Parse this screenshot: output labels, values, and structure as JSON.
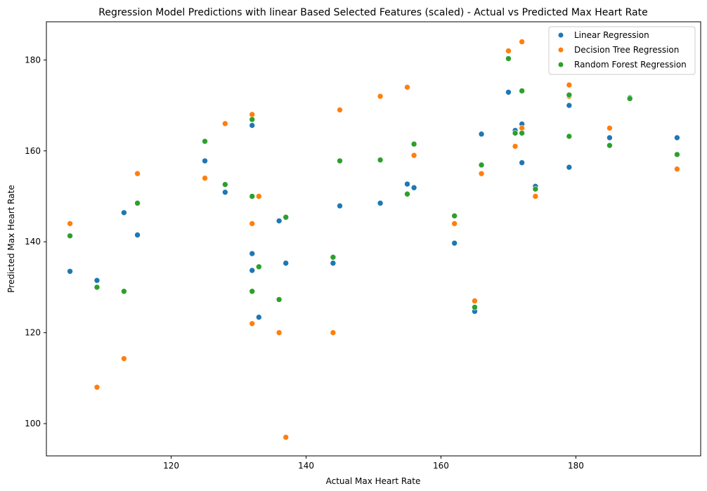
{
  "chart_data": {
    "type": "scatter",
    "title": "Regression Model Predictions with linear Based Selected Features (scaled) - Actual vs Predicted Max Heart Rate",
    "xlabel": "Actual Max Heart Rate",
    "ylabel": "Predicted Max Heart Rate",
    "xlim": [
      101.5,
      198.5
    ],
    "ylim": [
      92.9,
      188.4
    ],
    "xticks": [
      120,
      140,
      160,
      180
    ],
    "yticks": [
      100,
      120,
      140,
      160,
      180
    ],
    "grid": false,
    "legend_position": "top-right",
    "series": [
      {
        "name": "Linear Regression",
        "color": "#1f77b4",
        "points": [
          [
            105,
            133.5
          ],
          [
            109,
            131.5
          ],
          [
            113,
            146.4
          ],
          [
            115,
            141.5
          ],
          [
            125,
            157.8
          ],
          [
            128,
            150.9
          ],
          [
            132,
            165.6
          ],
          [
            132,
            137.4
          ],
          [
            132,
            133.7
          ],
          [
            133,
            123.4
          ],
          [
            136,
            144.6
          ],
          [
            137,
            135.3
          ],
          [
            144,
            135.3
          ],
          [
            145,
            147.9
          ],
          [
            151,
            148.5
          ],
          [
            155,
            152.7
          ],
          [
            156,
            151.9
          ],
          [
            162,
            139.7
          ],
          [
            165,
            124.7
          ],
          [
            166,
            163.7
          ],
          [
            170,
            172.9
          ],
          [
            171,
            164.5
          ],
          [
            172,
            165.9
          ],
          [
            172,
            157.4
          ],
          [
            174,
            152.2
          ],
          [
            179,
            170.0
          ],
          [
            179,
            156.4
          ],
          [
            185,
            162.9
          ],
          [
            188,
            171.7
          ],
          [
            195,
            162.9
          ]
        ]
      },
      {
        "name": "Decision Tree Regression",
        "color": "#ff7f0e",
        "points": [
          [
            105,
            144.0
          ],
          [
            109,
            108.0
          ],
          [
            113,
            114.3
          ],
          [
            115,
            155.0
          ],
          [
            125,
            154.0
          ],
          [
            128,
            166.0
          ],
          [
            132,
            168.0
          ],
          [
            132,
            144.0
          ],
          [
            132,
            122.0
          ],
          [
            133,
            150.0
          ],
          [
            136,
            120.0
          ],
          [
            137,
            97.0
          ],
          [
            144,
            120.0
          ],
          [
            145,
            169.0
          ],
          [
            151,
            172.0
          ],
          [
            155,
            174.0
          ],
          [
            156,
            159.0
          ],
          [
            162,
            144.0
          ],
          [
            165,
            127.0
          ],
          [
            166,
            155.0
          ],
          [
            170,
            182.0
          ],
          [
            171,
            161.0
          ],
          [
            172,
            184.0
          ],
          [
            172,
            165.0
          ],
          [
            174,
            150.0
          ],
          [
            179,
            174.5
          ],
          [
            179,
            172.0
          ],
          [
            185,
            165.0
          ],
          [
            195,
            156.0
          ]
        ]
      },
      {
        "name": "Random Forest Regression",
        "color": "#2ca02c",
        "points": [
          [
            105,
            141.3
          ],
          [
            109,
            130.0
          ],
          [
            113,
            129.1
          ],
          [
            115,
            148.5
          ],
          [
            125,
            162.1
          ],
          [
            128,
            152.6
          ],
          [
            132,
            166.9
          ],
          [
            132,
            150.0
          ],
          [
            132,
            129.1
          ],
          [
            133,
            134.5
          ],
          [
            136,
            127.3
          ],
          [
            137,
            145.4
          ],
          [
            144,
            136.6
          ],
          [
            145,
            157.8
          ],
          [
            151,
            158.0
          ],
          [
            155,
            150.5
          ],
          [
            156,
            161.5
          ],
          [
            162,
            145.7
          ],
          [
            165,
            125.6
          ],
          [
            166,
            156.9
          ],
          [
            170,
            180.3
          ],
          [
            171,
            163.9
          ],
          [
            172,
            173.2
          ],
          [
            172,
            163.9
          ],
          [
            174,
            151.6
          ],
          [
            179,
            172.3
          ],
          [
            179,
            163.2
          ],
          [
            185,
            161.2
          ],
          [
            188,
            171.5
          ],
          [
            195,
            159.2
          ]
        ]
      }
    ]
  }
}
